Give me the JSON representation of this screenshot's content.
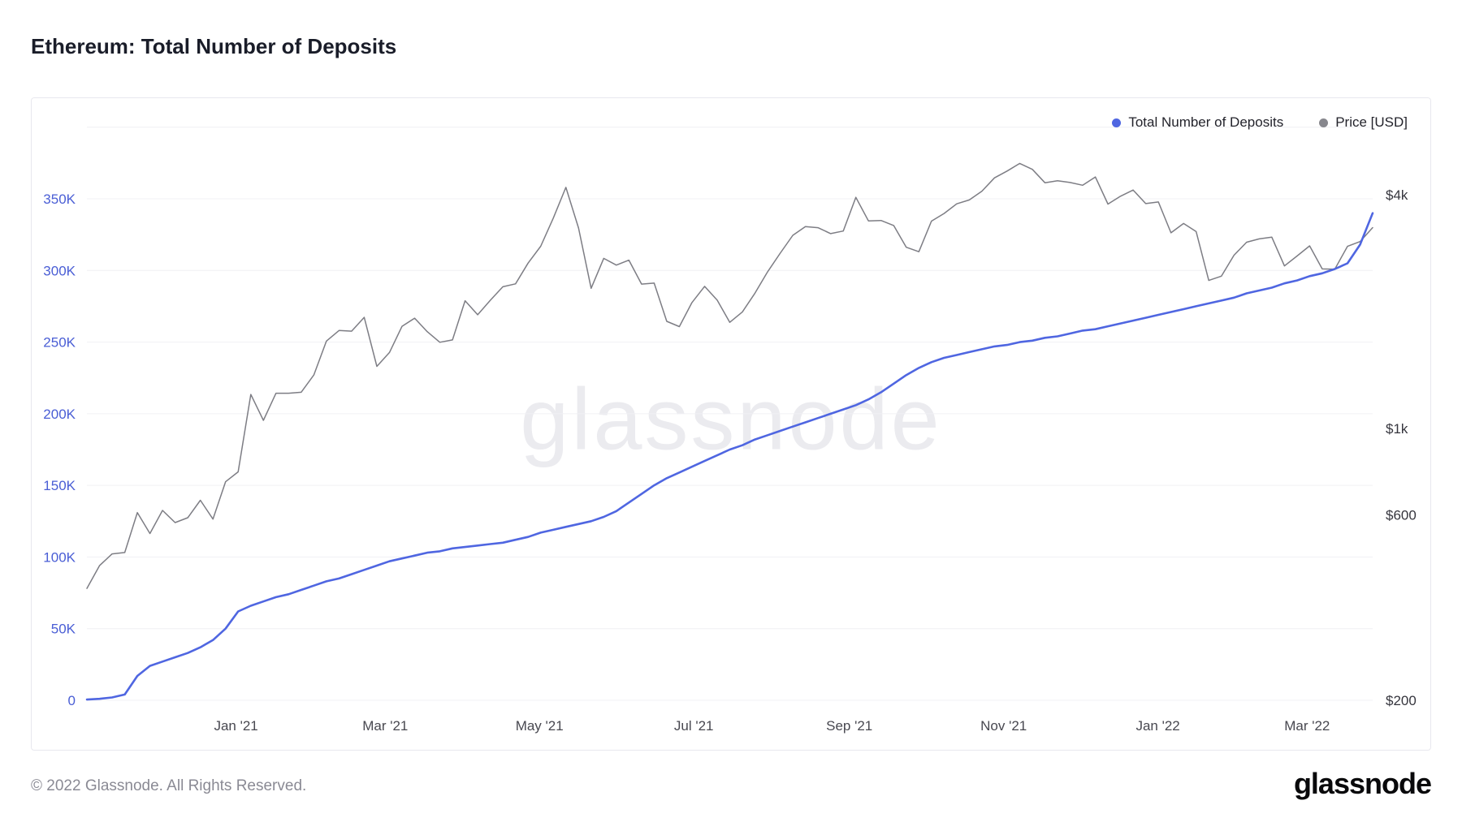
{
  "page": {
    "title": "Ethereum: Total Number of Deposits",
    "watermark": "glassnode",
    "footer": {
      "copyright": "© 2022 Glassnode. All Rights Reserved.",
      "brand": "glassnode"
    }
  },
  "legend": {
    "items": [
      {
        "label": "Total Number of Deposits",
        "color": "#4f66e1"
      },
      {
        "label": "Price [USD]",
        "color": "#87878d"
      }
    ]
  },
  "chart_data": {
    "type": "line",
    "title": "Ethereum: Total Number of Deposits",
    "grid": true,
    "legend_position": "top-right",
    "x_ticks": [
      {
        "label": "Jan '21",
        "t": 0.116
      },
      {
        "label": "Mar '21",
        "t": 0.232
      },
      {
        "label": "May '21",
        "t": 0.352
      },
      {
        "label": "Jul '21",
        "t": 0.472
      },
      {
        "label": "Sep '21",
        "t": 0.593
      },
      {
        "label": "Nov '21",
        "t": 0.713
      },
      {
        "label": "Jan '22",
        "t": 0.833
      },
      {
        "label": "Mar '22",
        "t": 0.949
      }
    ],
    "y_left": {
      "title": "Total Number of Deposits",
      "unit": "K",
      "scale": "linear",
      "range_k": [
        0,
        400
      ],
      "label_color": "#4a5ed5",
      "ticks": [
        {
          "value": 0,
          "label": "0"
        },
        {
          "value": 50,
          "label": "50K"
        },
        {
          "value": 100,
          "label": "100K"
        },
        {
          "value": 150,
          "label": "150K"
        },
        {
          "value": 200,
          "label": "200K"
        },
        {
          "value": 250,
          "label": "250K"
        },
        {
          "value": 300,
          "label": "300K"
        },
        {
          "value": 350,
          "label": "350K"
        },
        {
          "value": 400,
          "label": ""
        }
      ]
    },
    "y_right": {
      "title": "Price [USD]",
      "scale": "log",
      "base_value": 200,
      "label_color": "#35353d",
      "ticks": [
        {
          "value": 200,
          "label": "$200"
        },
        {
          "value": 600,
          "label": "$600"
        },
        {
          "value": 1000,
          "label": "$1k"
        },
        {
          "value": 4000,
          "label": "$4k"
        }
      ]
    },
    "series": [
      {
        "name": "Total Number of Deposits",
        "axis": "left",
        "unit": "K",
        "color": "#4f66e1",
        "values": [
          0.5,
          1,
          2,
          4,
          17,
          24,
          27,
          30,
          33,
          37,
          42,
          50,
          62,
          66,
          69,
          72,
          74,
          77,
          80,
          83,
          85,
          88,
          91,
          94,
          97,
          99,
          101,
          103,
          104,
          106,
          107,
          108,
          109,
          110,
          112,
          114,
          117,
          119,
          121,
          123,
          125,
          128,
          132,
          138,
          144,
          150,
          155,
          159,
          163,
          167,
          171,
          175,
          178,
          182,
          185,
          188,
          191,
          194,
          197,
          200,
          203,
          206,
          210,
          215,
          221,
          227,
          232,
          236,
          239,
          241,
          243,
          245,
          247,
          248,
          250,
          251,
          253,
          254,
          256,
          258,
          259,
          261,
          263,
          265,
          267,
          269,
          271,
          273,
          275,
          277,
          279,
          281,
          284,
          286,
          288,
          291,
          293,
          296,
          298,
          301,
          305,
          318,
          340
        ]
      },
      {
        "name": "Price [USD]",
        "axis": "right",
        "unit": "USD",
        "color": "#7d7d84",
        "values": [
          388,
          444,
          476,
          480,
          608,
          537,
          616,
          573,
          590,
          654,
          585,
          730,
          774,
          1224,
          1050,
          1233,
          1233,
          1240,
          1374,
          1680,
          1788,
          1781,
          1933,
          1446,
          1570,
          1833,
          1924,
          1776,
          1668,
          1691,
          2133,
          1963,
          2138,
          2317,
          2357,
          2666,
          2945,
          3480,
          4175,
          3282,
          2296,
          2742,
          2634,
          2712,
          2354,
          2368,
          1888,
          1830,
          2110,
          2322,
          2140,
          1877,
          1996,
          2231,
          2532,
          2827,
          3142,
          3310,
          3287,
          3175,
          3224,
          3936,
          3424,
          3432,
          3330,
          2928,
          2851,
          3418,
          3577,
          3786,
          3876,
          4082,
          4417,
          4599,
          4810,
          4646,
          4290,
          4340,
          4297,
          4227,
          4439,
          3782,
          3961,
          4110,
          3793,
          3829,
          3190,
          3371,
          3212,
          2406,
          2468,
          2793,
          3016,
          3076,
          3110,
          2622,
          2780,
          2952,
          2576,
          2572,
          2944,
          3028,
          3290
        ]
      }
    ]
  }
}
